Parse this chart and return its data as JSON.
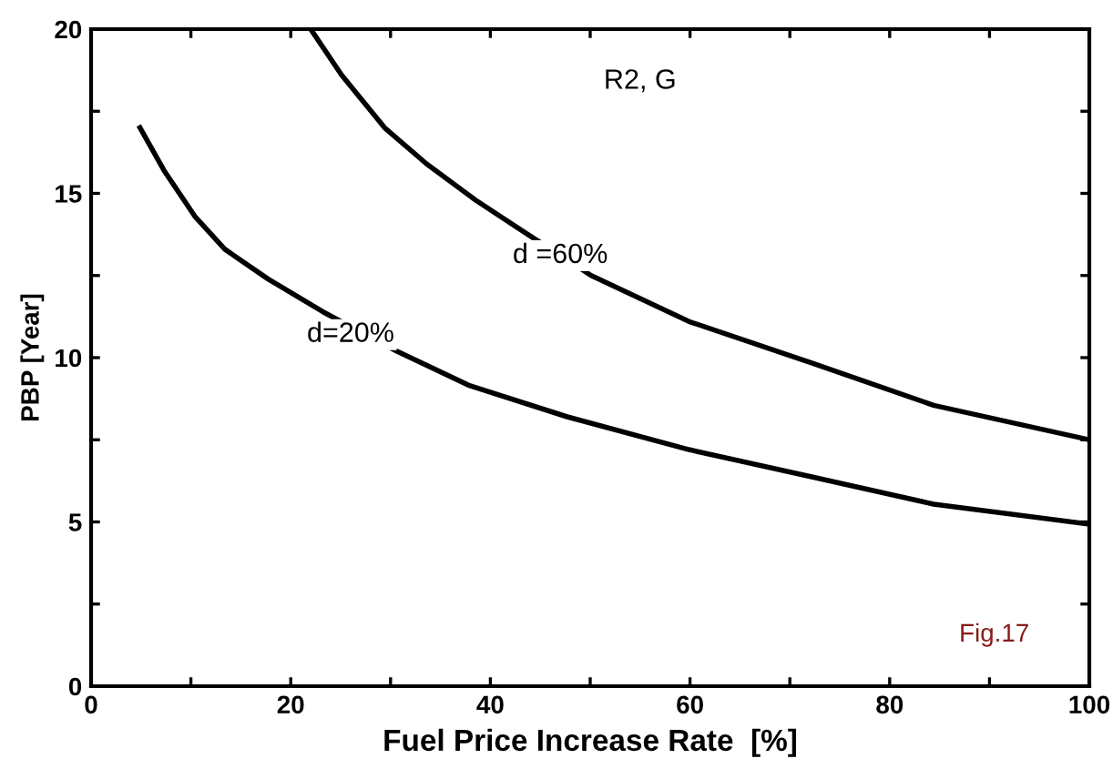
{
  "chart_data": {
    "type": "line",
    "xlabel": "Fuel Price Increase Rate  [%]",
    "ylabel": "PBP [Year]",
    "xlim": [
      0,
      100
    ],
    "ylim": [
      0,
      20
    ],
    "xticks": [
      0,
      {
        "value": 10,
        "label": null
      },
      20,
      {
        "value": 30,
        "label": null
      },
      40,
      {
        "value": 50,
        "label": null
      },
      60,
      {
        "value": 70,
        "label": null
      },
      80,
      {
        "value": 90,
        "label": null
      },
      100
    ],
    "yticks": [
      0,
      {
        "value": 2.5,
        "label": null
      },
      5,
      {
        "value": 7.5,
        "label": null
      },
      10,
      {
        "value": 12.5,
        "label": null
      },
      15,
      {
        "value": 17.5,
        "label": null
      },
      20
    ],
    "grid": false,
    "legend": false,
    "marker": "none",
    "line_style": "solid",
    "series": [
      {
        "color": "#000000",
        "x": [
          4.9,
          7.3,
          10.4,
          13.4,
          17.7,
          23.2,
          30.6,
          37.9,
          47.7,
          59.9,
          72.2,
          84.4,
          100
        ],
        "values": [
          17.0,
          15.7,
          14.3,
          13.3,
          12.4,
          11.4,
          10.2,
          9.15,
          8.2,
          7.2,
          6.37,
          5.54,
          4.93
        ]
      },
      {
        "color": "#000000",
        "x": [
          22.0,
          25.1,
          29.4,
          33.6,
          38.5,
          44.0,
          50.1,
          59.9,
          72.2,
          84.4,
          100
        ],
        "values": [
          20.0,
          18.6,
          17.0,
          15.9,
          14.8,
          13.7,
          12.5,
          11.1,
          9.84,
          8.55,
          7.5
        ]
      }
    ],
    "annotations": [
      {
        "text": "d=20%",
        "x": 26,
        "y": 10.7
      },
      {
        "text": "d =60%",
        "x": 47,
        "y": 13.1
      },
      "R2, G",
      "Fig.17"
    ]
  }
}
